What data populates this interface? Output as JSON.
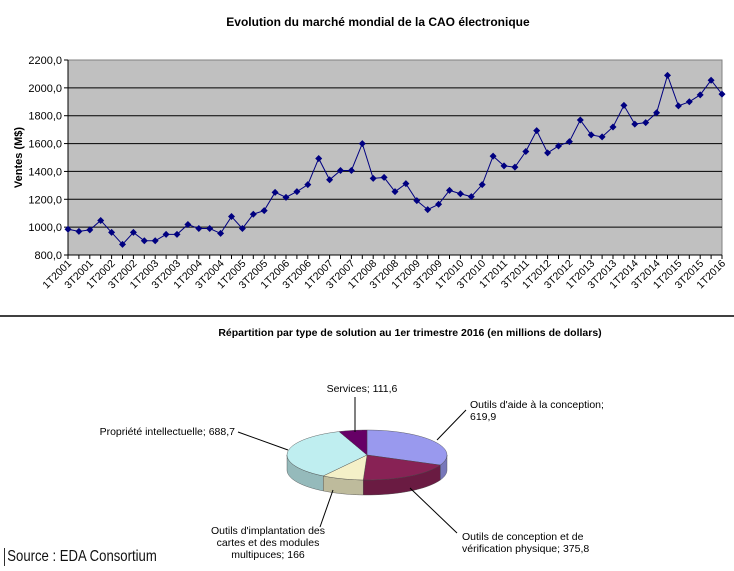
{
  "chart_data": [
    {
      "type": "line",
      "title": "Evolution du marché mondial de la CAO électronique",
      "xlabel": "",
      "ylabel": "Ventes (M$)",
      "ylim": [
        800,
        2200
      ],
      "yticks": [
        "800,0",
        "1000,0",
        "1200,0",
        "1400,0",
        "1600,0",
        "1800,0",
        "2000,0",
        "2200,0"
      ],
      "ytick_values": [
        800,
        1000,
        1200,
        1400,
        1600,
        1800,
        2000,
        2200
      ],
      "grid": true,
      "x_labels_shown": [
        "1T2001",
        "3T2001",
        "1T2002",
        "3T2002",
        "1T2003",
        "3T2003",
        "1T2004",
        "3T2004",
        "1T2005",
        "3T2005",
        "1T2006",
        "3T2006",
        "1T2007",
        "3T2007",
        "1T2008",
        "3T2008",
        "1T2009",
        "3T2009",
        "1T2010",
        "3T2010",
        "1T2011",
        "3T2011",
        "1T2012",
        "3T2012",
        "1T2013",
        "3T2013",
        "1T2014",
        "3T2014",
        "1T2015",
        "3T2015",
        "1T2016"
      ],
      "series": [
        {
          "name": "Ventes",
          "color": "#000080",
          "values": [
            985,
            970,
            980,
            1048,
            962,
            876,
            962,
            902,
            902,
            948,
            948,
            1019,
            990,
            990,
            955,
            1076,
            990,
            1093,
            1119,
            1250,
            1214,
            1255,
            1305,
            1493,
            1340,
            1407,
            1407,
            1600,
            1350,
            1357,
            1255,
            1312,
            1190,
            1126,
            1164,
            1264,
            1240,
            1219,
            1305,
            1510,
            1440,
            1431,
            1543,
            1693,
            1533,
            1583,
            1614,
            1769,
            1662,
            1648,
            1719,
            1874,
            1740,
            1750,
            1821,
            2090,
            1871,
            1900,
            1950,
            2055,
            1955
          ]
        }
      ]
    },
    {
      "type": "pie",
      "title": "Répartition par type de solution au 1er trimestre 2016 (en millions de dollars)",
      "slices": [
        {
          "label": "Outils d'aide à la conception",
          "value": 619.9,
          "text": [
            "Outils d'aide à la conception;",
            "619,9"
          ],
          "color": "#9999ee"
        },
        {
          "label": "Outils de conception et de vérification physique",
          "value": 375.8,
          "text": [
            "Outils de conception et de",
            "vérification physique; 375,8"
          ],
          "color": "#882255"
        },
        {
          "label": "Outils d'implantation des cartes et des modules multipuces",
          "value": 166,
          "text": [
            "Outils d'implantation des",
            "cartes et des modules",
            "multipuces; 166"
          ],
          "color": "#f4f0c8"
        },
        {
          "label": "Propriété intellectuelle",
          "value": 688.7,
          "text": [
            "Propriété intellectuelle; 688,7"
          ],
          "color": "#bfeef0"
        },
        {
          "label": "Services",
          "value": 111.6,
          "text": [
            "Services; 111,6"
          ],
          "color": "#660066"
        }
      ]
    }
  ],
  "source": "Source : EDA Consortium"
}
